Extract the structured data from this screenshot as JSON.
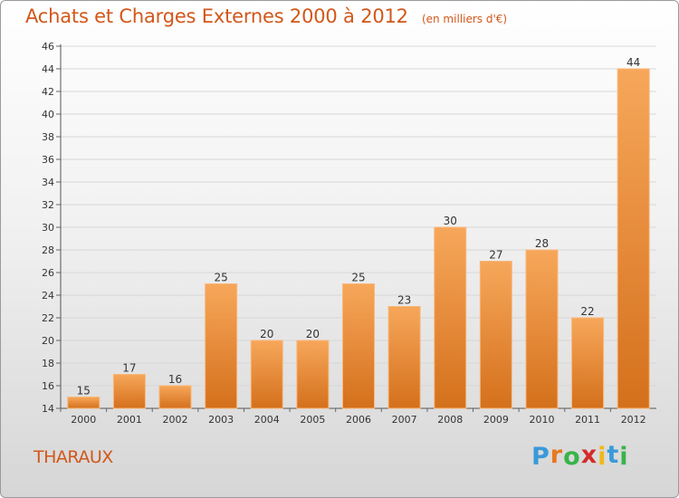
{
  "header": {
    "title": "Achats et Charges Externes 2000 à 2012",
    "unit": "(en milliers d'€)"
  },
  "footer": {
    "commune": "THARAUX",
    "logo_letters": [
      {
        "ch": "P",
        "color": "#3a9ad9"
      },
      {
        "ch": "r",
        "color": "#e8791e"
      },
      {
        "ch": "o",
        "color": "#3ab34a"
      },
      {
        "ch": "x",
        "color": "#d42a2a"
      },
      {
        "ch": "i",
        "color": "#f0b81c"
      },
      {
        "ch": "t",
        "color": "#3a9ad9"
      },
      {
        "ch": "i",
        "color": "#3ab34a"
      }
    ]
  },
  "colors": {
    "bar_top": "#f7a75a",
    "bar_bottom": "#d4701c",
    "bar_edge": "#f9b77a",
    "title": "#d2571a",
    "axis_text": "#333333",
    "grid": "#d7d7d7"
  },
  "chart_data": {
    "type": "bar",
    "categories": [
      "2000",
      "2001",
      "2002",
      "2003",
      "2004",
      "2005",
      "2006",
      "2007",
      "2008",
      "2009",
      "2010",
      "2011",
      "2012"
    ],
    "values": [
      15,
      17,
      16,
      25,
      20,
      20,
      25,
      23,
      30,
      27,
      28,
      22,
      44
    ],
    "ylim": [
      14,
      46
    ],
    "yticks": [
      14,
      16,
      18,
      20,
      22,
      24,
      26,
      28,
      30,
      32,
      34,
      36,
      38,
      40,
      42,
      44,
      46
    ],
    "grid": true,
    "data_labels": true
  }
}
